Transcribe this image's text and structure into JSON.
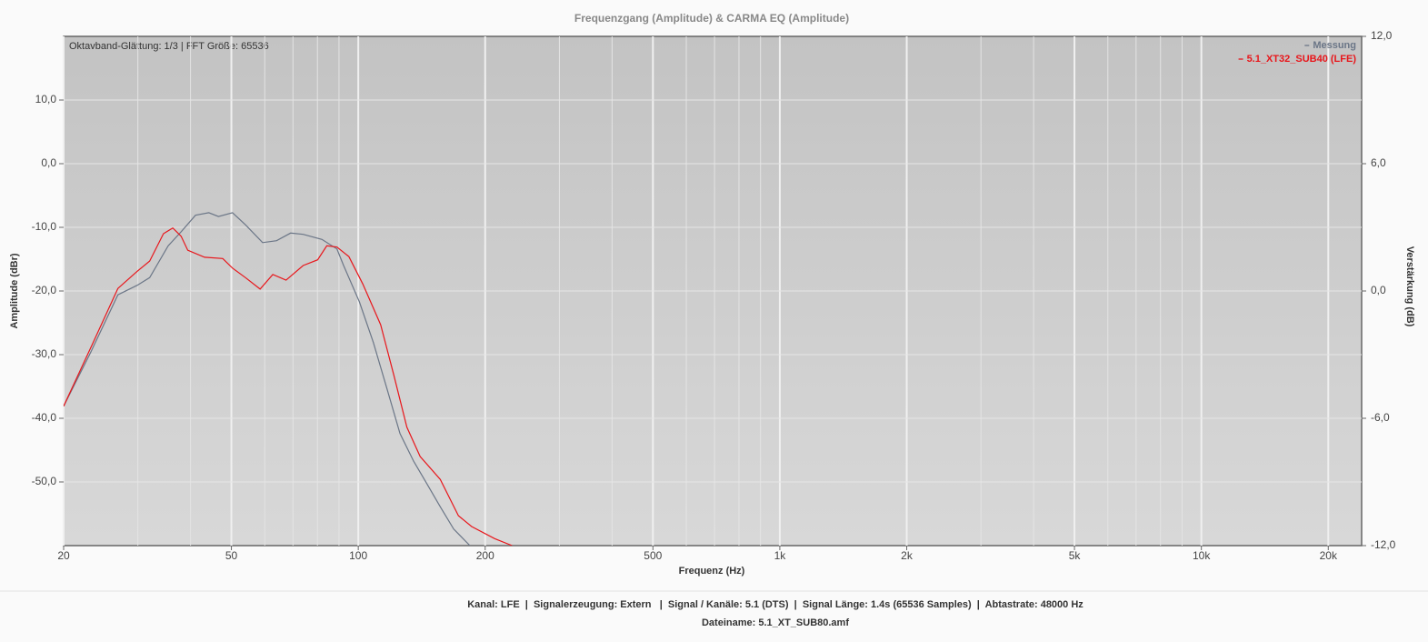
{
  "chart_data": {
    "type": "line",
    "title": "Frequenzgang (Amplitude) & CARMA EQ (Amplitude)",
    "annotation": "Oktavband-Glättung: 1/3 | FFT Größe: 65536",
    "x_label": "Frequenz (Hz)",
    "y_label": "Amplitude (dBr)",
    "y2_label": "Verstärkung (dB)",
    "x_scale": "log",
    "minor_grid": true,
    "grid": true,
    "legend": "top-right",
    "xlim": [
      20,
      24000
    ],
    "xticks": [
      20,
      50,
      100,
      200,
      500,
      {
        "value": 1000,
        "label": "1k"
      },
      {
        "value": 2000,
        "label": "2k"
      },
      {
        "value": 5000,
        "label": "5k"
      },
      {
        "value": 10000,
        "label": "10k"
      },
      {
        "value": 20000,
        "label": "20k"
      }
    ],
    "ylim": [
      -60,
      20
    ],
    "yticks": [
      {
        "value": -50,
        "label": "-50,0"
      },
      {
        "value": -40,
        "label": "-40,0"
      },
      {
        "value": -30,
        "label": "-30,0"
      },
      {
        "value": -20,
        "label": "-20,0"
      },
      {
        "value": -10,
        "label": "-10,0"
      },
      {
        "value": 0,
        "label": "0,0"
      },
      {
        "value": 10,
        "label": "10,0"
      }
    ],
    "y2lim": [
      -12,
      12
    ],
    "y2ticks": [
      {
        "value": -12,
        "label": "-12,0"
      },
      {
        "value": -6,
        "label": "-6,0"
      },
      {
        "value": 0,
        "label": "0,0"
      },
      {
        "value": 6,
        "label": "6,0"
      },
      {
        "value": 12,
        "label": "12,0"
      }
    ],
    "series": [
      {
        "name": "Messung",
        "color": "#6b7687",
        "x": [
          20,
          23.2,
          26.9,
          29.9,
          32,
          35.4,
          38,
          41.1,
          44.2,
          46.6,
          50.3,
          54,
          59.3,
          64,
          69.1,
          74,
          82,
          89,
          92.3,
          100.6,
          108.6,
          116.9,
          125.6,
          135.2,
          145.5,
          156.5,
          168.4,
          184
        ],
        "values": [
          -38.1,
          -29.6,
          -20.6,
          -19.1,
          -17.9,
          -12.9,
          -10.7,
          -8.1,
          -7.7,
          -8.3,
          -7.7,
          -9.6,
          -12.4,
          -12.1,
          -10.9,
          -11.1,
          -11.9,
          -13.4,
          -16,
          -21.7,
          -28.1,
          -35.3,
          -42.4,
          -46.7,
          -50.3,
          -53.9,
          -57.4,
          -60
        ]
      },
      {
        "name": "5.1_XT32_SUB40 (LFE)",
        "color": "#e8161b",
        "x": [
          20,
          23.2,
          26.9,
          29.9,
          32,
          34.5,
          36.3,
          38,
          39.4,
          43.2,
          47.7,
          50.3,
          54,
          58.5,
          62.7,
          67.4,
          74,
          80.1,
          84.2,
          89,
          95,
          102.5,
          113,
          121.3,
          130.4,
          140.2,
          156.5,
          172.8,
          185.7,
          210.6,
          231.7
        ],
        "values": [
          -38.1,
          -28.9,
          -19.6,
          -16.9,
          -15.3,
          -11,
          -10.1,
          -11.4,
          -13.6,
          -14.7,
          -14.9,
          -16.4,
          -17.9,
          -19.7,
          -17.4,
          -18.3,
          -16,
          -15.1,
          -12.9,
          -13.1,
          -14.6,
          -18.9,
          -25.3,
          -33.1,
          -41.4,
          -46,
          -49.6,
          -55.3,
          -57,
          -58.9,
          -60
        ]
      }
    ]
  },
  "footer": [
    "Kanal: LFE  |  Signalerzeugung: Extern   |  Signal / Kanäle: 5.1 (DTS)  |  Signal Länge: 1.4s (65536 Samples)  |  Abtastrate: 48000 Hz",
    "Dateiname: 5.1_XT_SUB80.amf"
  ]
}
